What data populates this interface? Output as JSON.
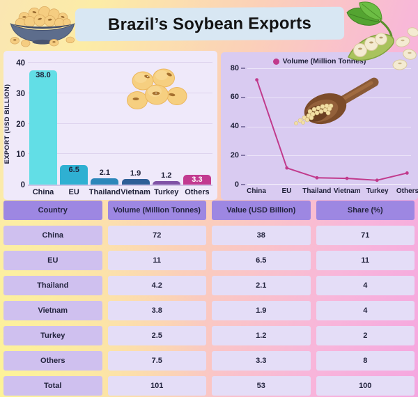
{
  "header": {
    "title": "Brazil’s Soybean Exports"
  },
  "chart_data": [
    {
      "type": "bar",
      "title": "",
      "ylabel": "EXPORT (USD BILLION)",
      "categories": [
        "China",
        "EU",
        "Thailand",
        "Vietnam",
        "Turkey",
        "Others"
      ],
      "values": [
        38.0,
        6.5,
        2.1,
        1.9,
        1.2,
        3.3
      ],
      "value_labels": [
        "38.0",
        "6.5",
        "2.1",
        "1.9",
        "1.2",
        "3.3"
      ],
      "label_inside": [
        true,
        true,
        false,
        false,
        false,
        true
      ],
      "label_text_colors": [
        "#1f2038",
        "#1f2038",
        "#1f2038",
        "#1f2038",
        "#1f2038",
        "#ffffff"
      ],
      "bar_colors": [
        "#62dee6",
        "#2fb0d2",
        "#2c87ba",
        "#2e5f97",
        "#8052a6",
        "#c23a90"
      ],
      "ylim": [
        0,
        40
      ],
      "yticks": [
        0,
        10,
        20,
        30,
        40
      ],
      "grid": true,
      "legend_position": "none"
    },
    {
      "type": "line",
      "legend": "Volume (Million Tonnes)",
      "legend_position": "top",
      "categories": [
        "China",
        "EU",
        "Thailand",
        "Vietnam",
        "Turkey",
        "Others"
      ],
      "values": [
        72,
        11,
        4.2,
        3.8,
        2.5,
        7.5
      ],
      "line_color": "#c13a8c",
      "ylim": [
        0,
        80
      ],
      "yticks": [
        0,
        20,
        40,
        60,
        80
      ],
      "grid": true
    }
  ],
  "table": {
    "headers": [
      "Country",
      "Volume (Million Tonnes)",
      "Value (USD Billion)",
      "Share (%)"
    ],
    "rows": [
      [
        "China",
        "72",
        "38",
        "71"
      ],
      [
        "EU",
        "11",
        "6.5",
        "11"
      ],
      [
        "Thailand",
        "4.2",
        "2.1",
        "4"
      ],
      [
        "Vietnam",
        "3.8",
        "1.9",
        "4"
      ],
      [
        "Turkey",
        "2.5",
        "1.2",
        "2"
      ],
      [
        "Others",
        "7.5",
        "3.3",
        "8"
      ],
      [
        "Total",
        "101",
        "53",
        "100"
      ]
    ]
  },
  "colors": {
    "accent_magenta": "#c13a8c",
    "table_header_bg": "#9d87e2",
    "table_country_bg": "#cfc0ef",
    "table_value_bg": "#e4ddf7",
    "panel_bar_bg": "#efe9fa",
    "panel_line_bg": "#d9cbf1",
    "banner_bg": "#d8e7f3"
  },
  "illustrations": [
    "soybean-bowl-illustration",
    "soybean-pod-illustration",
    "soybean-cluster-illustration",
    "soybean-scoop-illustration",
    "legend-marker-icon"
  ]
}
